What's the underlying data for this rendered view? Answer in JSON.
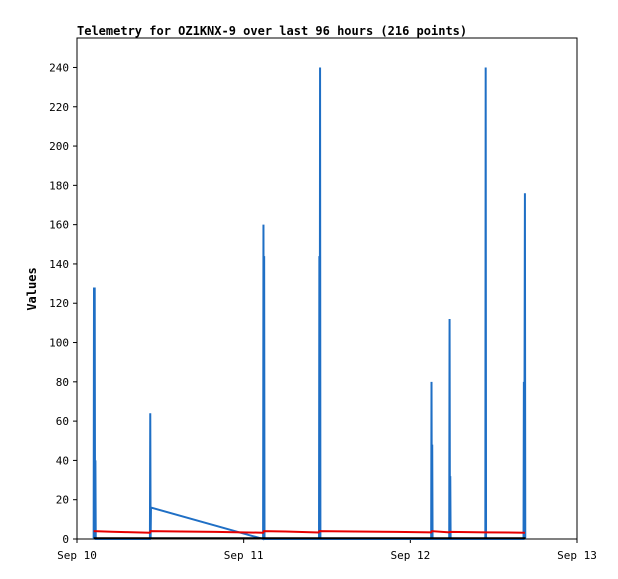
{
  "chart_data": {
    "type": "line",
    "title": "Telemetry for OZ1KNX-9 over last 96 hours (216 points)",
    "xlabel": "",
    "ylabel": "Values",
    "x_ticks": [
      {
        "label": "Sep 10",
        "hours": 0
      },
      {
        "label": "Sep 11",
        "hours": 24
      },
      {
        "label": "Sep 12",
        "hours": 48
      },
      {
        "label": "Sep 13",
        "hours": 72
      }
    ],
    "xlim_hours": [
      0,
      72
    ],
    "y_ticks": [
      0,
      20,
      40,
      60,
      80,
      100,
      120,
      140,
      160,
      180,
      200,
      220,
      240
    ],
    "ylim": [
      0,
      255
    ],
    "grid": false,
    "series": [
      {
        "color": "#1f6fc5",
        "points": [
          [
            2.4,
            0
          ],
          [
            2.45,
            128
          ],
          [
            2.5,
            0
          ],
          [
            2.55,
            128
          ],
          [
            2.6,
            0
          ],
          [
            2.65,
            40
          ],
          [
            2.7,
            0
          ],
          [
            10.5,
            0
          ],
          [
            10.55,
            64
          ],
          [
            10.6,
            0
          ],
          [
            10.65,
            16
          ],
          [
            26.8,
            0
          ],
          [
            26.85,
            160
          ],
          [
            26.9,
            0
          ],
          [
            26.95,
            144
          ],
          [
            27.0,
            0
          ],
          [
            34.85,
            0
          ],
          [
            34.9,
            144
          ],
          [
            34.95,
            0
          ],
          [
            35.0,
            240
          ],
          [
            35.05,
            0
          ],
          [
            51.0,
            0
          ],
          [
            51.05,
            80
          ],
          [
            51.1,
            0
          ],
          [
            51.15,
            48
          ],
          [
            51.2,
            0
          ],
          [
            53.6,
            0
          ],
          [
            53.65,
            112
          ],
          [
            53.7,
            0
          ],
          [
            53.75,
            32
          ],
          [
            53.8,
            0
          ],
          [
            58.8,
            0
          ],
          [
            58.85,
            240
          ],
          [
            58.9,
            0
          ],
          [
            64.3,
            0
          ],
          [
            64.35,
            80
          ],
          [
            64.4,
            0
          ],
          [
            64.5,
            176
          ],
          [
            64.55,
            0
          ]
        ]
      },
      {
        "color": "#e60000",
        "points": [
          [
            2.4,
            4
          ],
          [
            5.0,
            3.7
          ],
          [
            7.0,
            3.5
          ],
          [
            10.5,
            3.2
          ],
          [
            10.6,
            4
          ],
          [
            15.0,
            3.8
          ],
          [
            20.0,
            3.6
          ],
          [
            26.8,
            3.2
          ],
          [
            26.9,
            4
          ],
          [
            30.0,
            3.8
          ],
          [
            34.8,
            3.3
          ],
          [
            34.9,
            4
          ],
          [
            40.0,
            3.8
          ],
          [
            46.0,
            3.6
          ],
          [
            51.0,
            3.4
          ],
          [
            51.1,
            4
          ],
          [
            53.6,
            3.4
          ],
          [
            53.7,
            3.6
          ],
          [
            58.8,
            3.4
          ],
          [
            59.0,
            3.4
          ],
          [
            64.5,
            3.2
          ]
        ]
      },
      {
        "color": "#000000",
        "points": [
          [
            2.4,
            0.4
          ],
          [
            64.6,
            0.4
          ]
        ]
      }
    ]
  }
}
